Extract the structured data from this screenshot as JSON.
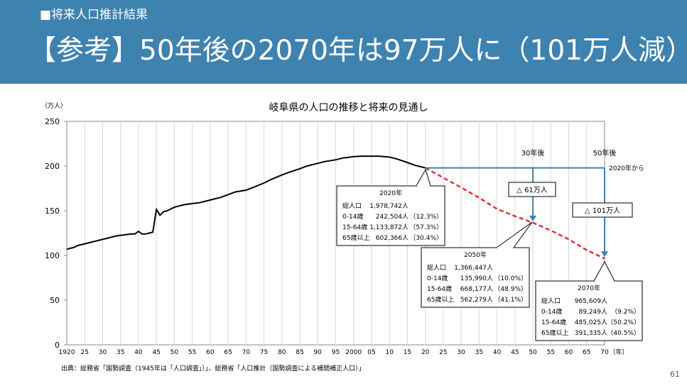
{
  "header": {
    "kicker": "■将来人口推計結果",
    "title": "【参考】50年後の2070年は97万人に（101万人減）"
  },
  "page_number": "61",
  "chart_data": {
    "type": "line",
    "title": "岐阜県の人口の推移と将来の見通し",
    "ylabel": "（万人）",
    "xlabel": "（年）",
    "ylim": [
      0,
      250
    ],
    "yticks": [
      0,
      50,
      100,
      150,
      200,
      250
    ],
    "xlim": [
      1920,
      2070
    ],
    "xtick_labels": [
      "1920",
      "25",
      "30",
      "35",
      "40",
      "45",
      "50",
      "55",
      "60",
      "65",
      "70",
      "75",
      "80",
      "85",
      "90",
      "95",
      "2000",
      "05",
      "10",
      "15",
      "20",
      "25",
      "30",
      "35",
      "40",
      "45",
      "50",
      "55",
      "60",
      "65",
      "70"
    ],
    "grid": "vertical",
    "series": [
      {
        "style": "solid-black",
        "x": [
          1920,
          1921,
          1922,
          1923,
          1924,
          1925,
          1926,
          1927,
          1928,
          1929,
          1930,
          1931,
          1932,
          1933,
          1934,
          1935,
          1936,
          1937,
          1938,
          1939,
          1940,
          1941,
          1942,
          1943,
          1944,
          1945,
          1946,
          1947,
          1948,
          1949,
          1950,
          1951,
          1952,
          1953,
          1954,
          1955,
          1957,
          1960,
          1963,
          1965,
          1967,
          1970,
          1972,
          1975,
          1977,
          1980,
          1982,
          1985,
          1987,
          1990,
          1992,
          1995,
          1997,
          2000,
          2002,
          2005,
          2007,
          2010,
          2012,
          2015,
          2017,
          2020
        ],
        "values": [
          107,
          108,
          109,
          111,
          112,
          113,
          114,
          115,
          116,
          117,
          118,
          119,
          120,
          121,
          122,
          122.5,
          123,
          123.5,
          124,
          124,
          127,
          124,
          124,
          125,
          126,
          151.5,
          145,
          149,
          150,
          152,
          154,
          155,
          156,
          157,
          157.5,
          158,
          159,
          162,
          165,
          168,
          171,
          173,
          176,
          181,
          185,
          190,
          193,
          197,
          200,
          203,
          205,
          207,
          209,
          210.5,
          211,
          211,
          211,
          210,
          208,
          204,
          201,
          197.9
        ]
      },
      {
        "style": "dashed-red",
        "x": [
          2020,
          2025,
          2030,
          2035,
          2040,
          2045,
          2050,
          2055,
          2060,
          2065,
          2070
        ],
        "values": [
          197.9,
          187,
          176,
          164.5,
          152,
          144,
          136.6,
          128,
          118,
          106,
          96.6
        ]
      }
    ],
    "annotations": {
      "label_30": "30年後",
      "label_50": "50年後",
      "label_from": "2020年から",
      "decrease_30": "△ 61万人",
      "decrease_50": "△ 101万人"
    },
    "callouts": [
      {
        "year_label": "2020年",
        "rows": [
          {
            "label": "総人口",
            "value": "1,978,742人",
            "pct": ""
          },
          {
            "label": "0-14歳",
            "value": "242,504人",
            "pct": "（12.3%）"
          },
          {
            "label": "15-64歳",
            "value": "1,133,872人",
            "pct": "（57.3%）"
          },
          {
            "label": "65歳以上",
            "value": "602,366人",
            "pct": "（30.4%）"
          }
        ]
      },
      {
        "year_label": "2050年",
        "rows": [
          {
            "label": "総人口",
            "value": "1,366,447人",
            "pct": ""
          },
          {
            "label": "0-14歳",
            "value": "135,990人",
            "pct": "（10.0%）"
          },
          {
            "label": "15-64歳",
            "value": "668,177人",
            "pct": "（48.9%）"
          },
          {
            "label": "65歳以上",
            "value": "562,279人",
            "pct": "（41.1%）"
          }
        ]
      },
      {
        "year_label": "2070年",
        "rows": [
          {
            "label": "総人口",
            "value": "965,609人",
            "pct": ""
          },
          {
            "label": "0-14歳",
            "value": "89,249人",
            "pct": "（9.2%）"
          },
          {
            "label": "15-64歳",
            "value": "485,025人",
            "pct": "（50.2%）"
          },
          {
            "label": "65歳以上",
            "value": "391,335人",
            "pct": "（40.5%）"
          }
        ]
      }
    ],
    "source": "出典：総務省「国勢調査（1945年は「人口調査」）」、総務省「人口推計（国勢調査による補間補正人口）」",
    "colors": {
      "history": "#000000",
      "projection": "#e8262b",
      "bracket": "#3e82b0"
    }
  }
}
